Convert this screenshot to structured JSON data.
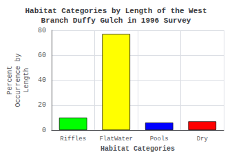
{
  "chart_data": {
    "type": "bar",
    "title": "Habitat Categories by Length of the West\nBranch Duffy Gulch in 1996 Survey",
    "xlabel": "Habitat Categories",
    "ylabel": "Percent\nOccurrence by\nLength",
    "categories": [
      "Riffles",
      "FlatWater",
      "Pools",
      "Dry"
    ],
    "values": [
      10,
      77,
      6,
      7
    ],
    "colors": [
      "#00ff00",
      "#ffff00",
      "#0000ff",
      "#ff0000"
    ],
    "ylim": [
      0,
      80
    ],
    "yticks": [
      0,
      20,
      40,
      60,
      80
    ],
    "grid": true
  }
}
